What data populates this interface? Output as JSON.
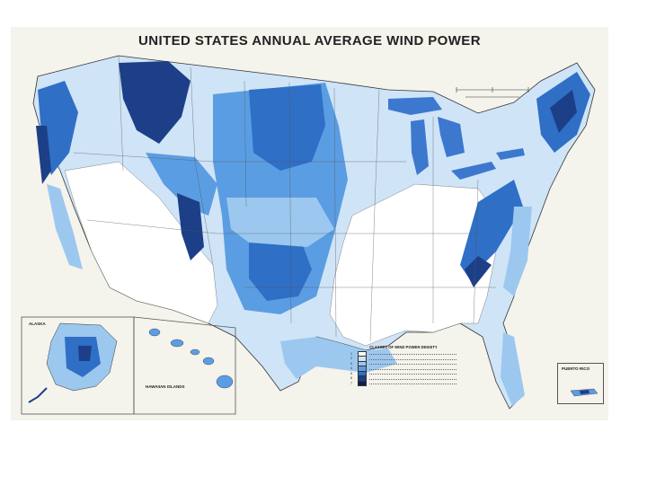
{
  "map": {
    "title": "UNITED STATES ANNUAL AVERAGE WIND POWER",
    "insets": {
      "alaska": "ALASKA",
      "hawaii": "HAWAIIAN ISLANDS",
      "puerto_rico": "PUERTO RICO"
    },
    "legend": {
      "title": "CLASSES OF WIND POWER DENSITY",
      "classes": [
        {
          "class": "1",
          "color": "#ffffff"
        },
        {
          "class": "2",
          "color": "#cfe4f7"
        },
        {
          "class": "3",
          "color": "#9cc8ef"
        },
        {
          "class": "4",
          "color": "#5b9de2"
        },
        {
          "class": "5",
          "color": "#2f6fc6"
        },
        {
          "class": "6",
          "color": "#1c3f88"
        },
        {
          "class": "7",
          "color": "#0e1f4d"
        }
      ]
    },
    "colors": {
      "land_low": "#ffffff",
      "class2": "#cfe4f7",
      "class3": "#9cc8ef",
      "class4": "#5b9de2",
      "class5": "#2f6fc6",
      "class6": "#1c3f88",
      "water": "#3d78cf",
      "border": "#333333"
    }
  }
}
